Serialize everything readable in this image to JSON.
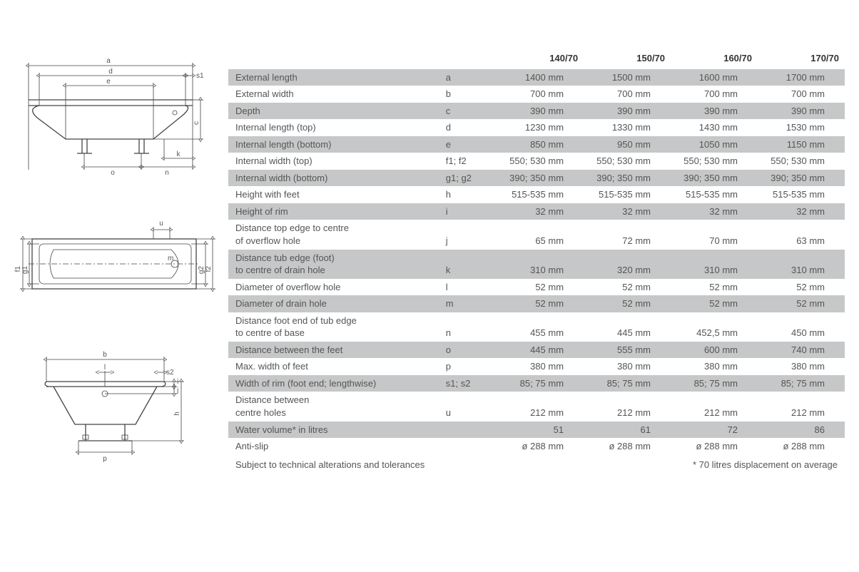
{
  "colors": {
    "rowAlt": "#c6c7c8",
    "text": "#555555",
    "line": "#444444",
    "bg": "#ffffff"
  },
  "table": {
    "header": [
      "",
      "",
      "140/70",
      "150/70",
      "160/70",
      "170/70"
    ],
    "rows": [
      {
        "alt": true,
        "label": "External length",
        "sym": "a",
        "v": [
          "1400 mm",
          "1500 mm",
          "1600 mm",
          "1700 mm"
        ]
      },
      {
        "alt": false,
        "label": "External width",
        "sym": "b",
        "v": [
          "700 mm",
          "700 mm",
          "700 mm",
          "700 mm"
        ]
      },
      {
        "alt": true,
        "label": "Depth",
        "sym": "c",
        "v": [
          "390 mm",
          "390 mm",
          "390 mm",
          "390 mm"
        ]
      },
      {
        "alt": false,
        "label": "Internal length (top)",
        "sym": "d",
        "v": [
          "1230 mm",
          "1330 mm",
          "1430 mm",
          "1530 mm"
        ]
      },
      {
        "alt": true,
        "label": "Internal length (bottom)",
        "sym": "e",
        "v": [
          "850 mm",
          "950 mm",
          "1050 mm",
          "1150 mm"
        ]
      },
      {
        "alt": false,
        "label": "Internal width (top)",
        "sym": "f1; f2",
        "v": [
          "550; 530 mm",
          "550; 530 mm",
          "550; 530 mm",
          "550; 530 mm"
        ]
      },
      {
        "alt": true,
        "label": "Internal width (bottom)",
        "sym": "g1; g2",
        "v": [
          "390; 350 mm",
          "390; 350 mm",
          "390; 350 mm",
          "390; 350 mm"
        ]
      },
      {
        "alt": false,
        "label": "Height with feet",
        "sym": "h",
        "v": [
          "515-535 mm",
          "515-535 mm",
          "515-535 mm",
          "515-535 mm"
        ]
      },
      {
        "alt": true,
        "label": "Height of rim",
        "sym": "i",
        "v": [
          "32 mm",
          "32 mm",
          "32 mm",
          "32 mm"
        ]
      },
      {
        "alt": false,
        "multiTop": true,
        "label": "Distance top edge to centre",
        "sym": "",
        "v": [
          "",
          "",
          "",
          ""
        ]
      },
      {
        "alt": false,
        "multiBot": true,
        "label": "of overflow hole",
        "sym": "j",
        "v": [
          "65 mm",
          "72 mm",
          "70 mm",
          "63 mm"
        ]
      },
      {
        "alt": true,
        "multiTop": true,
        "label": "Distance tub edge (foot)",
        "sym": "",
        "v": [
          "",
          "",
          "",
          ""
        ]
      },
      {
        "alt": true,
        "multiBot": true,
        "label": "to centre of drain hole",
        "sym": "k",
        "v": [
          "310 mm",
          "320 mm",
          "310 mm",
          "310 mm"
        ]
      },
      {
        "alt": false,
        "label": "Diameter of overflow hole",
        "sym": "l",
        "v": [
          "52 mm",
          "52 mm",
          "52 mm",
          "52 mm"
        ]
      },
      {
        "alt": true,
        "label": "Diameter of drain hole",
        "sym": "m",
        "v": [
          "52 mm",
          "52 mm",
          "52 mm",
          "52 mm"
        ]
      },
      {
        "alt": false,
        "multiTop": true,
        "label": "Distance foot end of tub edge",
        "sym": "",
        "v": [
          "",
          "",
          "",
          ""
        ]
      },
      {
        "alt": false,
        "multiBot": true,
        "label": "to centre of base",
        "sym": "n",
        "v": [
          "455 mm",
          "445 mm",
          "452,5 mm",
          "450 mm"
        ]
      },
      {
        "alt": true,
        "label": "Distance between the feet",
        "sym": "o",
        "v": [
          "445 mm",
          "555 mm",
          "600 mm",
          "740 mm"
        ]
      },
      {
        "alt": false,
        "label": "Max. width of feet",
        "sym": "p",
        "v": [
          "380 mm",
          "380 mm",
          "380 mm",
          "380 mm"
        ]
      },
      {
        "alt": true,
        "label": "Width of rim (foot end; lengthwise)",
        "sym": "s1; s2",
        "v": [
          "85; 75 mm",
          "85; 75 mm",
          "85; 75 mm",
          "85; 75 mm"
        ]
      },
      {
        "alt": false,
        "multiTop": true,
        "label": "Distance between",
        "sym": "",
        "v": [
          "",
          "",
          "",
          ""
        ]
      },
      {
        "alt": false,
        "multiBot": true,
        "label": "centre holes",
        "sym": "u",
        "v": [
          "212 mm",
          "212 mm",
          "212 mm",
          "212 mm"
        ]
      },
      {
        "alt": true,
        "label": "Water volume* in litres",
        "sym": "",
        "v": [
          "51",
          "61",
          "72",
          "86"
        ]
      },
      {
        "alt": false,
        "label": "Anti-slip",
        "sym": "",
        "v": [
          "ø 288 mm",
          "ø 288 mm",
          "ø 288 mm",
          "ø 288 mm"
        ]
      }
    ]
  },
  "footnote": {
    "left": "Subject to technical alterations and tolerances",
    "right": "* 70 litres displacement on average"
  },
  "diagramLabels": {
    "side": {
      "a": "a",
      "d": "d",
      "e": "e",
      "s1": "s1",
      "c": "c",
      "k": "k",
      "n": "n",
      "o": "o"
    },
    "top": {
      "u": "u",
      "m": "m",
      "f1": "f1",
      "f2": "f2",
      "g1": "g1",
      "g2": "g2"
    },
    "front": {
      "b": "b",
      "l": "l",
      "s2": "s2",
      "j": "j",
      "i": "i",
      "h": "h",
      "p": "p"
    }
  }
}
